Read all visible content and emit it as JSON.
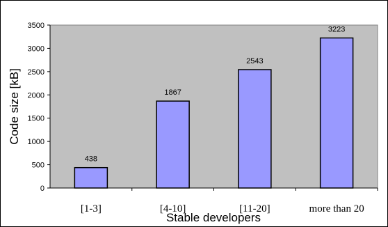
{
  "chart_data": {
    "type": "bar",
    "categories": [
      "[1-3]",
      "[4-10]",
      "[11-20]",
      "more than 20"
    ],
    "values": [
      438,
      1867,
      2543,
      3223
    ],
    "xlabel": "Stable developers",
    "ylabel": "Code size [kB]",
    "ylim": [
      0,
      3500
    ],
    "yticks": [
      0,
      500,
      1000,
      1500,
      2000,
      2500,
      3000,
      3500
    ],
    "grid": false,
    "legend": "none",
    "data_labels": true,
    "colors": {
      "plot_area": "#c0c0c0",
      "bar_fill": "#9999ff",
      "bar_stroke": "#000000"
    }
  }
}
